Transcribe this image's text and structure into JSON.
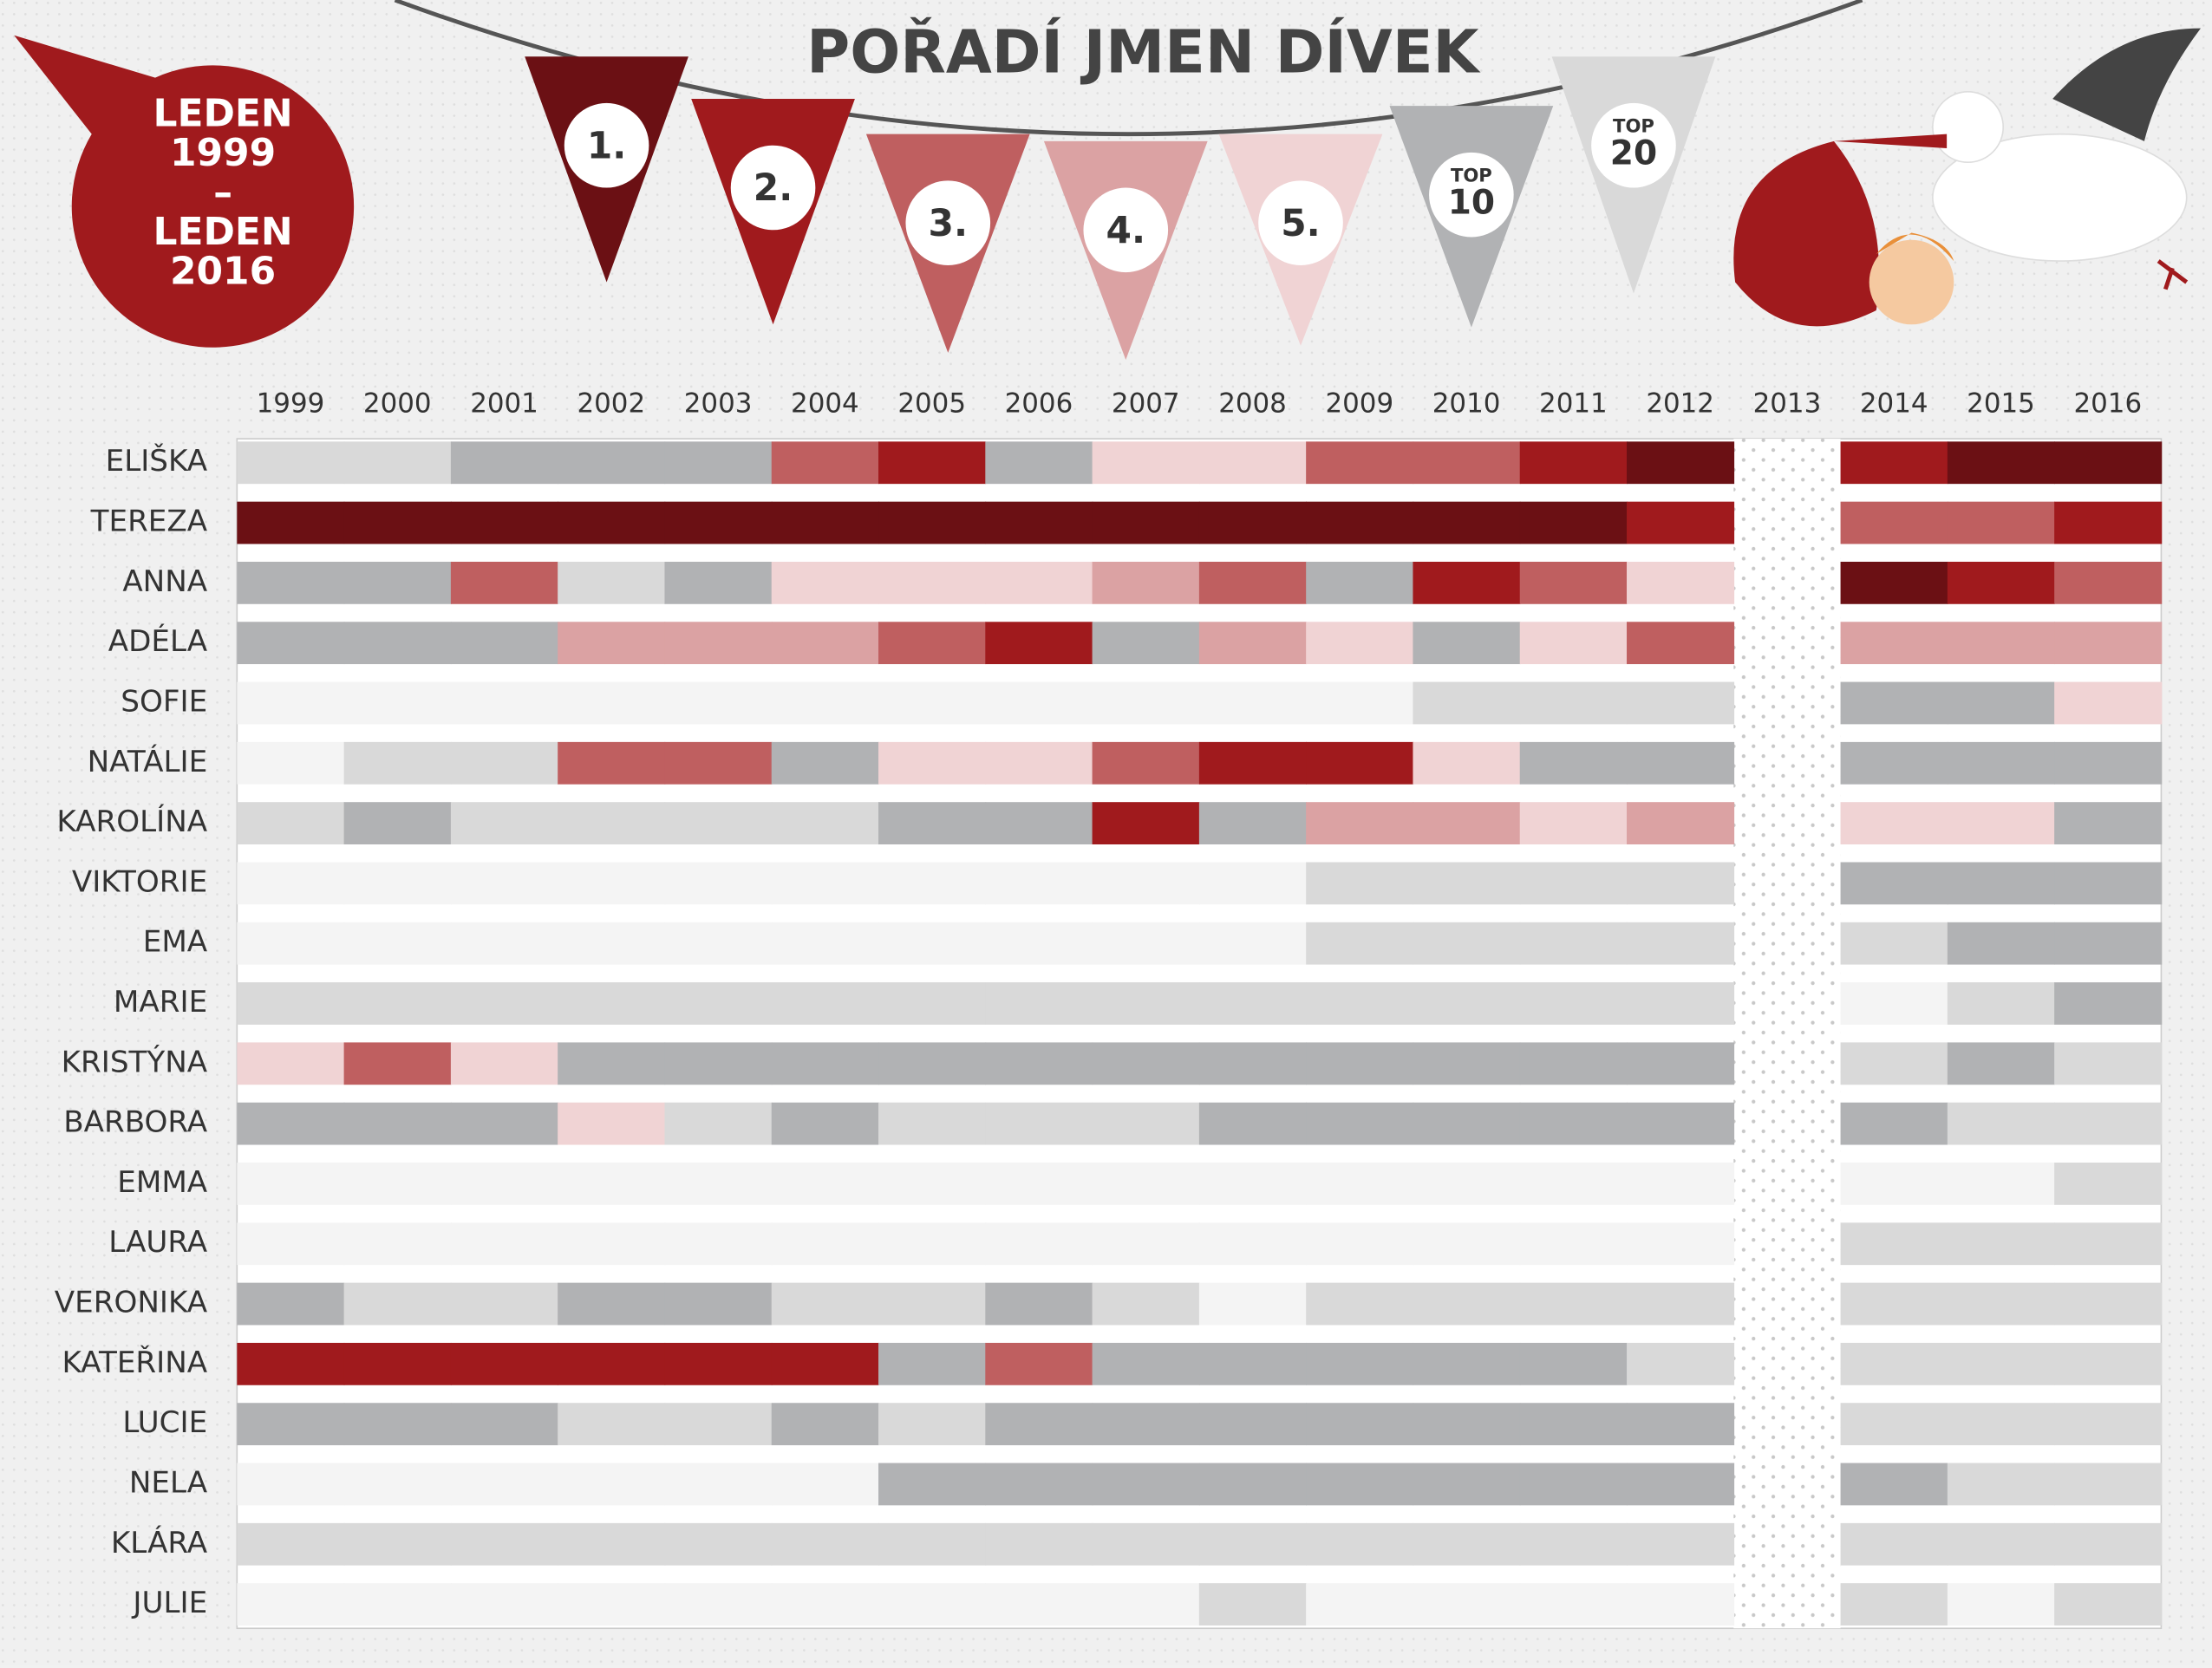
{
  "chart_data": {
    "type": "heatmap",
    "title": "POŘADÍ JMEN DÍVEK",
    "badge": [
      "LEDEN",
      "1999",
      "–",
      "LEDEN",
      "2016"
    ],
    "legend": [
      {
        "value": 1,
        "label": "1.",
        "color": "#6b1014"
      },
      {
        "value": 2,
        "label": "2.",
        "color": "#a01a1d"
      },
      {
        "value": 3,
        "label": "3.",
        "color": "#bf5f60"
      },
      {
        "value": 4,
        "label": "4.",
        "color": "#dba2a3"
      },
      {
        "value": 5,
        "label": "5.",
        "color": "#f0d3d4"
      },
      {
        "value": 10,
        "prefix": "TOP",
        "label": "10",
        "color": "#b1b2b4"
      },
      {
        "value": 20,
        "prefix": "TOP",
        "label": "20",
        "color": "#d9d9d9"
      }
    ],
    "null_color": "#f4f4f4",
    "no_data_year": "2013",
    "categories": [
      "1999",
      "2000",
      "2001",
      "2002",
      "2003",
      "2004",
      "2005",
      "2006",
      "2007",
      "2008",
      "2009",
      "2010",
      "2011",
      "2012",
      "2013",
      "2014",
      "2015",
      "2016"
    ],
    "series": [
      {
        "name": "ELIŠKA",
        "values": [
          20,
          20,
          10,
          10,
          10,
          3,
          2,
          10,
          5,
          5,
          3,
          3,
          2,
          1,
          null,
          2,
          1,
          1
        ]
      },
      {
        "name": "TEREZA",
        "values": [
          1,
          1,
          1,
          1,
          1,
          1,
          1,
          1,
          1,
          1,
          1,
          1,
          1,
          2,
          null,
          3,
          3,
          2
        ]
      },
      {
        "name": "ANNA",
        "values": [
          10,
          10,
          3,
          20,
          10,
          5,
          5,
          5,
          4,
          3,
          10,
          2,
          3,
          5,
          null,
          1,
          2,
          3
        ]
      },
      {
        "name": "ADÉLA",
        "values": [
          10,
          10,
          10,
          4,
          4,
          4,
          3,
          2,
          10,
          4,
          5,
          10,
          5,
          3,
          null,
          4,
          4,
          4
        ]
      },
      {
        "name": "SOFIE",
        "values": [
          null,
          null,
          null,
          null,
          null,
          null,
          null,
          null,
          null,
          null,
          null,
          20,
          20,
          20,
          null,
          10,
          10,
          5
        ]
      },
      {
        "name": "NATÁLIE",
        "values": [
          null,
          20,
          20,
          3,
          3,
          10,
          5,
          5,
          3,
          2,
          2,
          5,
          10,
          10,
          null,
          10,
          10,
          10
        ]
      },
      {
        "name": "KAROLÍNA",
        "values": [
          20,
          10,
          20,
          20,
          20,
          20,
          10,
          10,
          2,
          10,
          4,
          4,
          5,
          4,
          null,
          5,
          5,
          10
        ]
      },
      {
        "name": "VIKTORIE",
        "values": [
          null,
          null,
          null,
          null,
          null,
          null,
          null,
          null,
          null,
          null,
          20,
          20,
          20,
          20,
          null,
          10,
          10,
          10
        ]
      },
      {
        "name": "EMA",
        "values": [
          null,
          null,
          null,
          null,
          null,
          null,
          null,
          null,
          null,
          null,
          20,
          20,
          20,
          20,
          null,
          20,
          10,
          10
        ]
      },
      {
        "name": "MARIE",
        "values": [
          20,
          20,
          20,
          20,
          20,
          20,
          20,
          20,
          20,
          20,
          20,
          20,
          20,
          20,
          null,
          null,
          20,
          10
        ]
      },
      {
        "name": "KRISTÝNA",
        "values": [
          5,
          3,
          5,
          10,
          10,
          10,
          10,
          10,
          10,
          10,
          10,
          10,
          10,
          10,
          null,
          20,
          10,
          20
        ]
      },
      {
        "name": "BARBORA",
        "values": [
          10,
          10,
          10,
          5,
          20,
          10,
          20,
          20,
          20,
          10,
          10,
          10,
          10,
          10,
          null,
          10,
          20,
          20
        ]
      },
      {
        "name": "EMMA",
        "values": [
          null,
          null,
          null,
          null,
          null,
          null,
          null,
          null,
          null,
          null,
          null,
          null,
          null,
          null,
          null,
          null,
          null,
          20
        ]
      },
      {
        "name": "LAURA",
        "values": [
          null,
          null,
          null,
          null,
          null,
          null,
          null,
          null,
          null,
          null,
          null,
          null,
          null,
          null,
          null,
          20,
          20,
          20
        ]
      },
      {
        "name": "VERONIKA",
        "values": [
          10,
          20,
          20,
          10,
          10,
          20,
          20,
          10,
          20,
          null,
          20,
          20,
          20,
          20,
          null,
          20,
          20,
          20
        ]
      },
      {
        "name": "KATEŘINA",
        "values": [
          2,
          2,
          2,
          2,
          2,
          2,
          10,
          3,
          10,
          10,
          10,
          10,
          10,
          20,
          null,
          20,
          20,
          20
        ]
      },
      {
        "name": "LUCIE",
        "values": [
          10,
          10,
          10,
          20,
          20,
          10,
          20,
          10,
          10,
          10,
          10,
          10,
          10,
          10,
          null,
          20,
          20,
          20
        ]
      },
      {
        "name": "NELA",
        "values": [
          null,
          null,
          null,
          null,
          null,
          null,
          10,
          10,
          10,
          10,
          10,
          10,
          10,
          10,
          null,
          10,
          20,
          20
        ]
      },
      {
        "name": "KLÁRA",
        "values": [
          20,
          20,
          20,
          20,
          20,
          20,
          20,
          20,
          20,
          20,
          20,
          20,
          20,
          20,
          null,
          20,
          20,
          20
        ]
      },
      {
        "name": "JULIE",
        "values": [
          null,
          null,
          null,
          null,
          null,
          null,
          null,
          null,
          null,
          20,
          null,
          null,
          null,
          null,
          null,
          20,
          null,
          20
        ]
      }
    ]
  }
}
